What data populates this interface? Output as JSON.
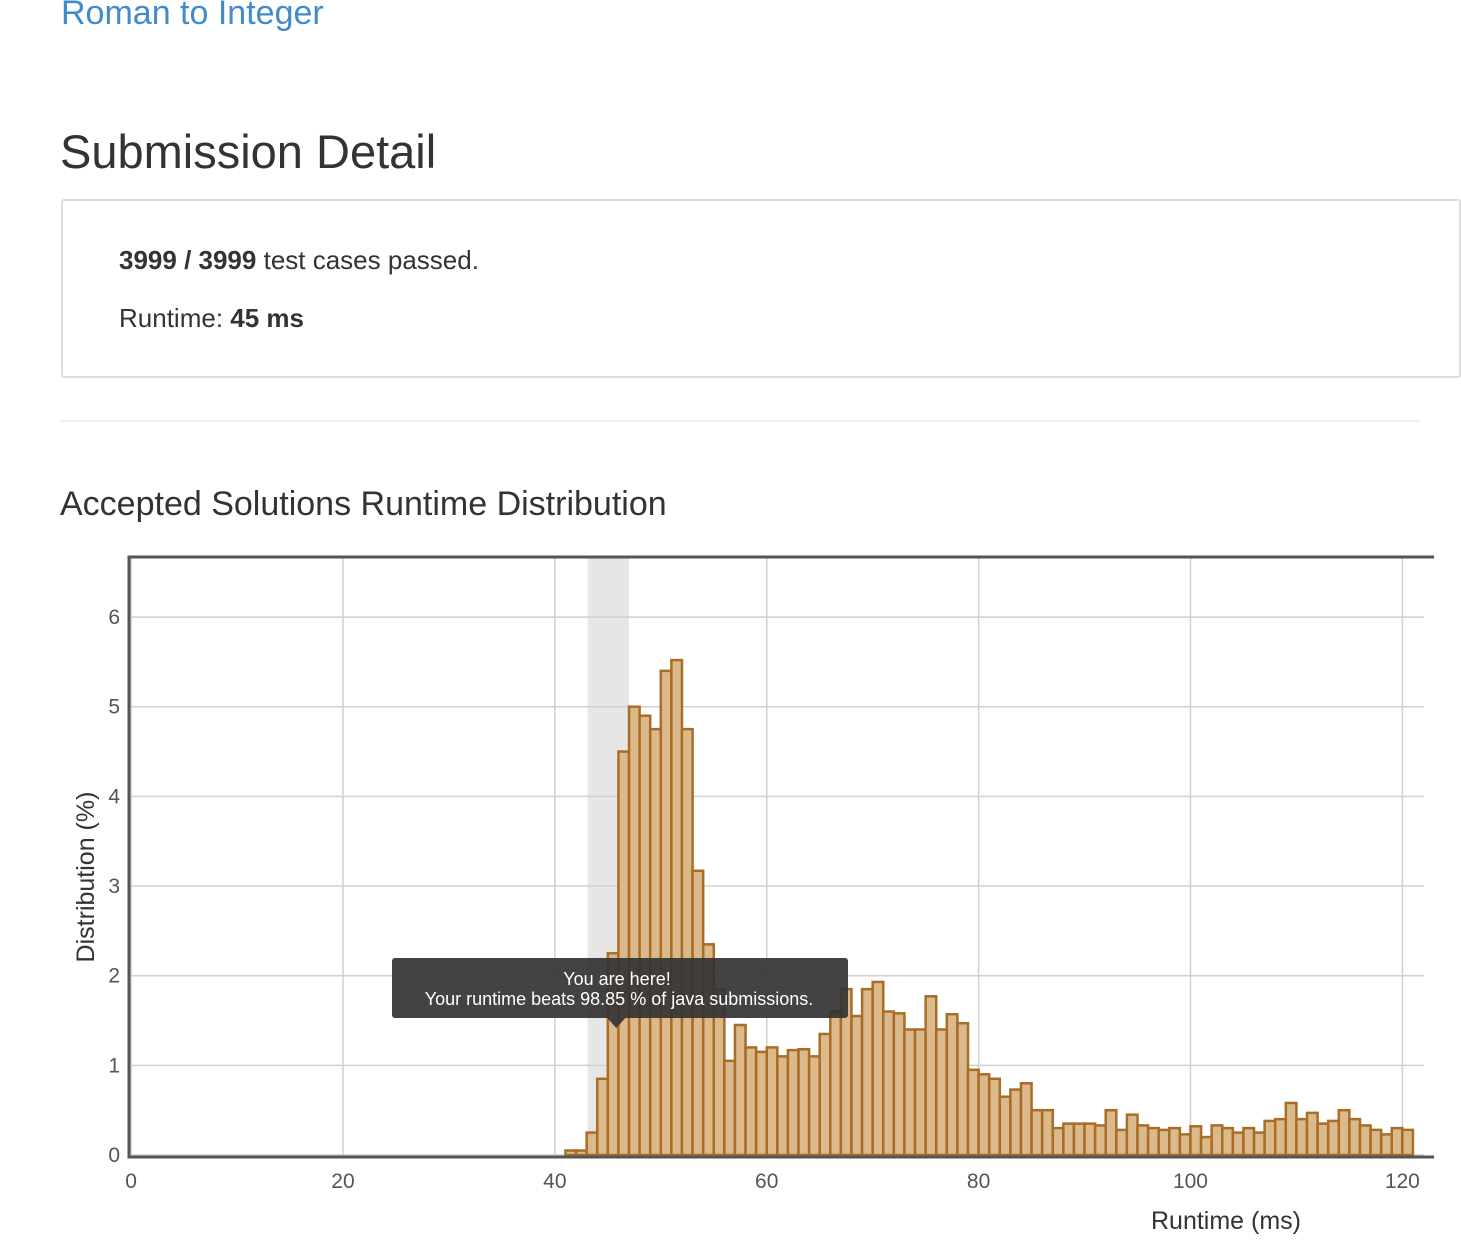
{
  "problem_title": "Roman to Integer",
  "heading": "Submission Detail",
  "summary": {
    "passed": "3999 / 3999",
    "passed_text": "test cases passed.",
    "runtime_label": "Runtime:",
    "runtime_value": "45 ms"
  },
  "chart_heading": "Accepted Solutions Runtime Distribution",
  "chart_data": {
    "type": "histogram",
    "xlabel": "Runtime (ms)",
    "ylabel": "Distribution (%)",
    "color": "#dcb98a",
    "edge_color": "#a86d27",
    "grid": true,
    "xlim": [
      -0.2,
      121.1
    ],
    "ylim": [
      0,
      6.67
    ],
    "xticks": [
      0,
      20,
      40,
      60,
      80,
      100,
      120
    ],
    "yticks": [
      0,
      1,
      2,
      3,
      4,
      5,
      6
    ],
    "highlight": [
      43.1,
      47.0
    ],
    "tooltip": {
      "title": "You are here!",
      "text": "Your runtime beats 98.85 % of java submissions.",
      "x": 45.8
    },
    "bins": [
      41,
      42,
      43,
      44,
      45,
      46,
      47,
      48,
      49,
      50,
      51,
      52,
      53,
      54,
      55,
      56,
      57,
      58,
      59,
      60,
      61,
      62,
      63,
      64,
      65,
      66,
      67,
      68,
      69,
      70,
      71,
      72,
      73,
      74,
      75,
      76,
      77,
      78,
      79,
      80,
      81,
      82,
      83,
      84,
      85,
      86,
      87,
      88,
      89,
      90,
      91,
      92,
      93,
      94,
      95,
      96,
      97,
      98,
      99,
      100,
      101,
      102,
      103,
      104,
      105,
      106,
      107,
      108,
      109,
      110,
      111,
      112,
      113,
      114,
      115,
      116,
      117,
      118,
      119,
      120,
      121
    ],
    "values": [
      0.05,
      0.05,
      0.25,
      0.85,
      2.25,
      4.5,
      5.0,
      4.9,
      4.75,
      5.4,
      5.52,
      4.75,
      3.17,
      2.35,
      1.85,
      1.05,
      1.45,
      1.2,
      1.15,
      1.2,
      1.1,
      1.17,
      1.18,
      1.1,
      1.35,
      1.6,
      1.85,
      1.55,
      1.85,
      1.93,
      1.6,
      1.58,
      1.4,
      1.4,
      1.77,
      1.4,
      1.57,
      1.47,
      0.95,
      0.9,
      0.85,
      0.65,
      0.73,
      0.8,
      0.5,
      0.5,
      0.3,
      0.35,
      0.35,
      0.35,
      0.33,
      0.5,
      0.28,
      0.45,
      0.33,
      0.3,
      0.28,
      0.3,
      0.23,
      0.32,
      0.2,
      0.33,
      0.3,
      0.25,
      0.3,
      0.25,
      0.38,
      0.4,
      0.58,
      0.4,
      0.47,
      0.35,
      0.38,
      0.5,
      0.4,
      0.33,
      0.28,
      0.23,
      0.3,
      0.28
    ]
  }
}
